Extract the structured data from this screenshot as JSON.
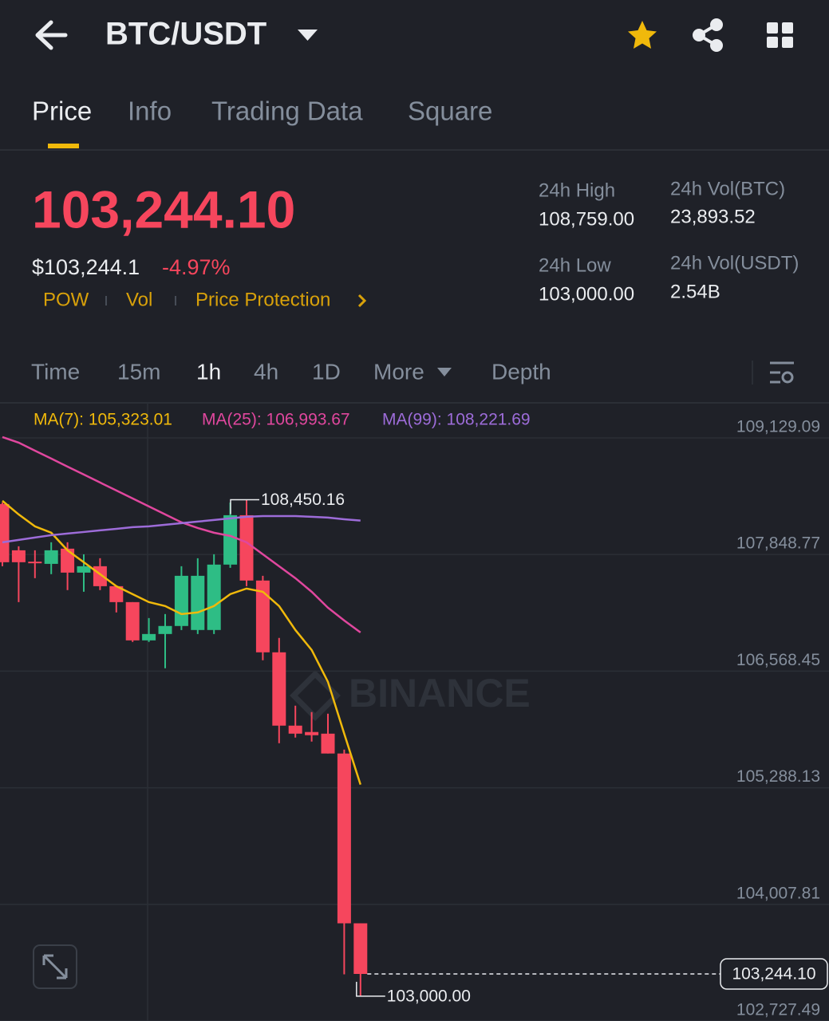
{
  "header": {
    "title": "BTC/USDT"
  },
  "tabs": [
    "Price",
    "Info",
    "Trading Data",
    "Square"
  ],
  "price": {
    "last": "103,244.10",
    "fiat": "$103,244.1",
    "change": "-4.97%",
    "tags": [
      "POW",
      "Vol",
      "Price Protection"
    ]
  },
  "stats": [
    {
      "label": "24h High",
      "value": "108,759.00"
    },
    {
      "label": "24h Low",
      "value": "103,000.00"
    },
    {
      "label": "24h Vol(BTC)",
      "value": "23,893.52"
    },
    {
      "label": "24h Vol(USDT)",
      "value": "2.54B"
    }
  ],
  "intervals": [
    "Time",
    "15m",
    "1h",
    "4h",
    "1D",
    "More",
    "Depth"
  ],
  "chart_data": {
    "type": "candlestick",
    "watermark": "BINANCE",
    "up_color": "#2ebd85",
    "down_color": "#f6465d",
    "ylim": [
      102727.49,
      109514.1
    ],
    "yticks": [
      {
        "value": 109129.09,
        "label": "109,129.09"
      },
      {
        "value": 107848.77,
        "label": "107,848.77"
      },
      {
        "value": 106568.45,
        "label": "106,568.45"
      },
      {
        "value": 105288.13,
        "label": "105,288.13"
      },
      {
        "value": 104007.81,
        "label": "104,007.81"
      },
      {
        "value": 102727.49,
        "label": "102,727.49"
      }
    ],
    "grid": true,
    "candles": [
      {
        "open": 108403,
        "high": 108420,
        "low": 107720,
        "close": 107764
      },
      {
        "open": 107895,
        "high": 107939,
        "low": 107326,
        "close": 107764
      },
      {
        "open": 107770,
        "high": 107895,
        "low": 107589,
        "close": 107764
      },
      {
        "open": 107746,
        "high": 107983,
        "low": 107633,
        "close": 107895
      },
      {
        "open": 107913,
        "high": 107983,
        "low": 107458,
        "close": 107650
      },
      {
        "open": 107650,
        "high": 107851,
        "low": 107440,
        "close": 107720
      },
      {
        "open": 107720,
        "high": 107808,
        "low": 107458,
        "close": 107501
      },
      {
        "open": 107501,
        "high": 107501,
        "low": 107213,
        "close": 107326
      },
      {
        "open": 107326,
        "high": 107326,
        "low": 106889,
        "close": 106906
      },
      {
        "open": 106906,
        "high": 107151,
        "low": 106889,
        "close": 106976
      },
      {
        "open": 106976,
        "high": 107195,
        "low": 106600,
        "close": 107064
      },
      {
        "open": 107064,
        "high": 107720,
        "low": 107020,
        "close": 107615
      },
      {
        "open": 107020,
        "high": 107808,
        "low": 106976,
        "close": 107615
      },
      {
        "open": 107020,
        "high": 107851,
        "low": 106976,
        "close": 107738
      },
      {
        "open": 107738,
        "high": 108420,
        "low": 107703,
        "close": 108280
      },
      {
        "open": 108280,
        "high": 108450.16,
        "low": 107501,
        "close": 107563
      },
      {
        "open": 107563,
        "high": 107615,
        "low": 106688,
        "close": 106775
      },
      {
        "open": 106775,
        "high": 106933,
        "low": 105777,
        "close": 105970
      },
      {
        "open": 105970,
        "high": 106189,
        "low": 105839,
        "close": 105882
      },
      {
        "open": 105900,
        "high": 106119,
        "low": 105795,
        "close": 105865
      },
      {
        "open": 105882,
        "high": 106101,
        "low": 105664,
        "close": 105664
      },
      {
        "open": 105664,
        "high": 105707,
        "low": 103240,
        "close": 103800
      },
      {
        "open": 103800,
        "high": 103800,
        "low": 103000,
        "close": 103244.1
      }
    ],
    "series": [
      {
        "name": "MA(7): 105,323.01",
        "color": "#f0b90b",
        "values": [
          108438,
          108289,
          108158,
          108088,
          107895,
          107764,
          107633,
          107501,
          107414,
          107326,
          107283,
          107195,
          107213,
          107283,
          107414,
          107475,
          107440,
          107283,
          107020,
          106801,
          106451,
          105882,
          105323.01
        ]
      },
      {
        "name": "MA(25): 106,993.67",
        "color": "#e0479e",
        "values": [
          109138,
          109077,
          108989,
          108902,
          108814,
          108727,
          108639,
          108552,
          108464,
          108377,
          108289,
          108202,
          108140,
          108088,
          108053,
          107983,
          107851,
          107720,
          107589,
          107440,
          107265,
          107125,
          106993.67
        ]
      },
      {
        "name": "MA(99): 108,221.69",
        "color": "#9d6cd9",
        "values": [
          107983,
          108009,
          108035,
          108061,
          108079,
          108096,
          108114,
          108131,
          108149,
          108158,
          108175,
          108193,
          108210,
          108228,
          108245,
          108263,
          108271,
          108271,
          108271,
          108263,
          108254,
          108236,
          108221.69
        ]
      }
    ],
    "annotations": [
      {
        "value": 108450.16,
        "label": "108,450.16"
      },
      {
        "value": 103000,
        "label": "103,000.00"
      }
    ],
    "current_price": {
      "value": 103244.1,
      "label": "103,244.10"
    }
  }
}
